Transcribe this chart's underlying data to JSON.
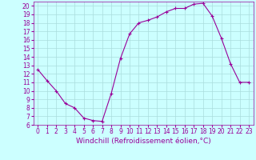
{
  "x": [
    0,
    1,
    2,
    3,
    4,
    5,
    6,
    7,
    8,
    9,
    10,
    11,
    12,
    13,
    14,
    15,
    16,
    17,
    18,
    19,
    20,
    21,
    22,
    23
  ],
  "y": [
    12.5,
    11.2,
    10.0,
    8.5,
    8.0,
    6.8,
    6.5,
    6.4,
    9.7,
    13.8,
    16.7,
    18.0,
    18.3,
    18.7,
    19.3,
    19.7,
    19.7,
    20.2,
    20.3,
    18.8,
    16.2,
    13.2,
    11.0,
    11.0
  ],
  "line_color": "#990099",
  "marker": "+",
  "marker_size": 3,
  "bg_color": "#ccffff",
  "grid_color": "#aadddd",
  "xlabel": "Windchill (Refroidissement éolien,°C)",
  "xlabel_color": "#990099",
  "tick_color": "#990099",
  "ylim": [
    6,
    20.5
  ],
  "xlim": [
    -0.5,
    23.5
  ],
  "yticks": [
    6,
    7,
    8,
    9,
    10,
    11,
    12,
    13,
    14,
    15,
    16,
    17,
    18,
    19,
    20
  ],
  "xticks": [
    0,
    1,
    2,
    3,
    4,
    5,
    6,
    7,
    8,
    9,
    10,
    11,
    12,
    13,
    14,
    15,
    16,
    17,
    18,
    19,
    20,
    21,
    22,
    23
  ],
  "tick_fontsize": 5.5,
  "xlabel_fontsize": 6.5,
  "line_width": 0.8
}
